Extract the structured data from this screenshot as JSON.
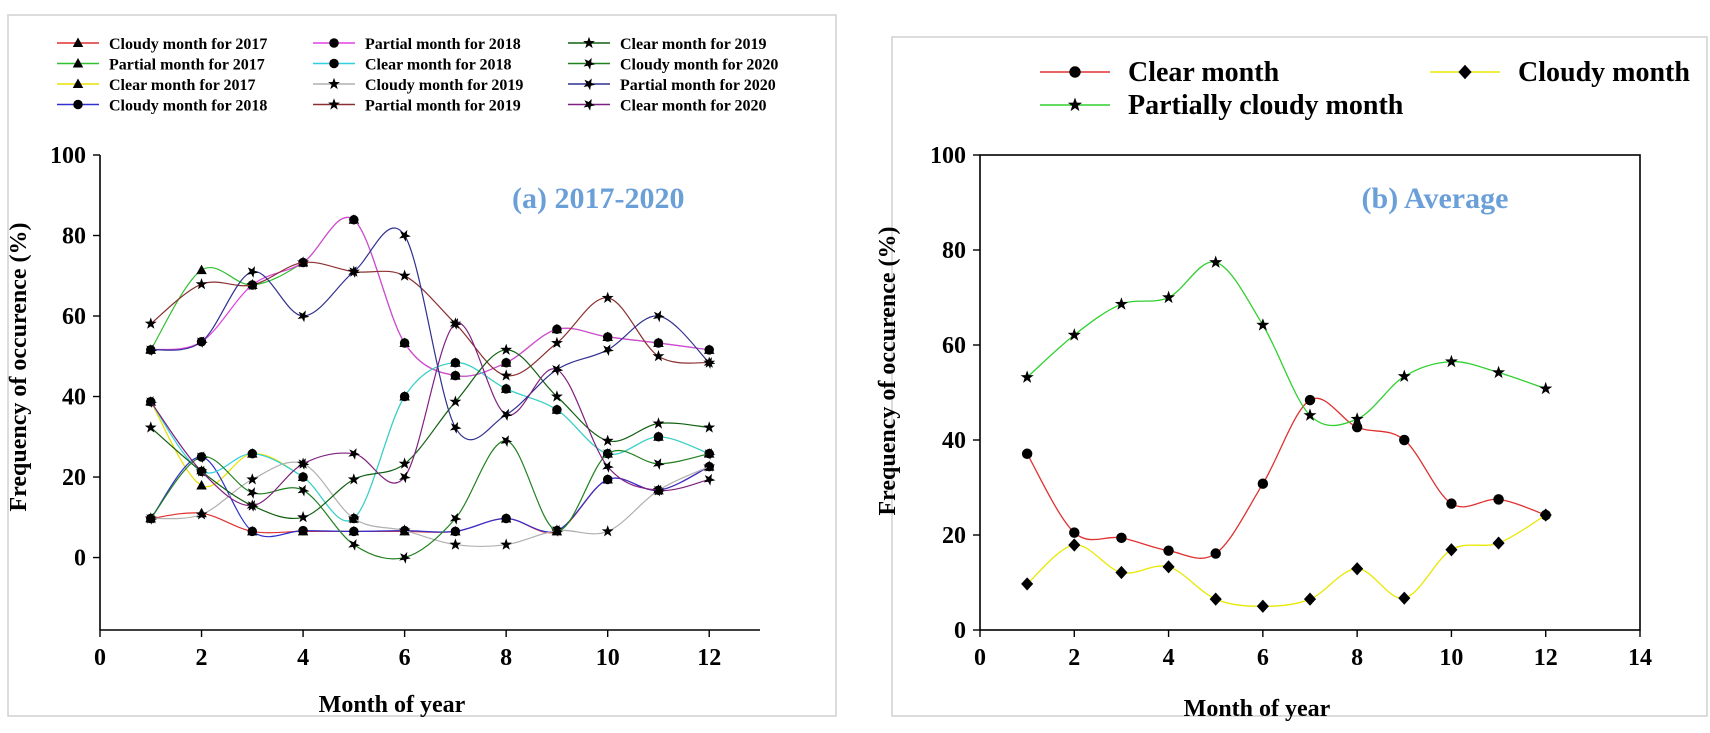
{
  "chart_data": [
    {
      "type": "line",
      "title": "(a) 2017-2020",
      "xlabel": "Month of year",
      "ylabel": "Frequency of occurence (%)",
      "xlim": [
        0,
        13
      ],
      "ylim": [
        -18,
        100
      ],
      "xticks": [
        0,
        2,
        4,
        6,
        8,
        10,
        12
      ],
      "yticks": [
        0,
        20,
        40,
        60,
        80,
        100
      ],
      "x": [
        1,
        2,
        3,
        4,
        5,
        6,
        7,
        8,
        9,
        10,
        11,
        12
      ],
      "series": [
        {
          "name": "Cloudy month for 2017",
          "color": "#e03030",
          "marker": "triangle",
          "values": [
            9.7,
            11,
            6.5,
            6.5,
            6.5,
            6.5,
            6.5,
            9.7,
            6.5,
            19.4,
            16.7,
            22.6
          ]
        },
        {
          "name": "Partial month for 2017",
          "color": "#30c030",
          "marker": "triangle",
          "values": [
            51.6,
            71.4,
            67.7,
            73.3,
            83.9,
            53.3,
            45.2,
            48.4,
            56.7,
            54.8,
            53.3,
            51.6
          ]
        },
        {
          "name": "Clear month for 2017",
          "color": "#e8e000",
          "marker": "triangle",
          "values": [
            38.7,
            17.9,
            25.8,
            20,
            9.7,
            40,
            48.4,
            41.9,
            36.7,
            25.8,
            30,
            25.8
          ]
        },
        {
          "name": "Cloudy month for 2018",
          "color": "#3030d0",
          "marker": "circle",
          "values": [
            9.7,
            25,
            6.5,
            6.7,
            6.5,
            6.7,
            6.5,
            9.7,
            6.7,
            19.4,
            16.7,
            22.6
          ]
        },
        {
          "name": "Partial month for 2018",
          "color": "#e040e0",
          "marker": "circle",
          "values": [
            51.6,
            53.6,
            67.7,
            73.3,
            83.9,
            53.3,
            45.2,
            48.4,
            56.7,
            54.8,
            53.3,
            51.6
          ]
        },
        {
          "name": "Clear month for 2018",
          "color": "#30d0e0",
          "marker": "circle",
          "values": [
            38.7,
            21.4,
            25.8,
            20,
            9.7,
            40,
            48.4,
            41.9,
            36.7,
            25.8,
            30,
            25.8
          ]
        },
        {
          "name": "Cloudy month for 2019",
          "color": "#b0b0b0",
          "marker": "star",
          "values": [
            9.7,
            10.7,
            19.4,
            23.3,
            9.7,
            6.7,
            3.2,
            3.2,
            6.7,
            6.5,
            16.7,
            22.6
          ]
        },
        {
          "name": "Partial month for 2019",
          "color": "#8b3030",
          "marker": "star",
          "values": [
            58.1,
            67.9,
            67.7,
            73.3,
            71,
            70,
            58.1,
            45.2,
            53.3,
            64.5,
            50,
            48.4
          ]
        },
        {
          "name": "Clear month for 2019",
          "color": "#106010",
          "marker": "star",
          "values": [
            32.3,
            21.4,
            12.9,
            10,
            19.4,
            23.3,
            38.7,
            51.6,
            40,
            29,
            33.3,
            32.3
          ]
        },
        {
          "name": "Cloudy month for 2020",
          "color": "#208020",
          "marker": "rotated-star",
          "values": [
            9.7,
            25,
            16.1,
            16.7,
            3.2,
            0,
            9.7,
            29,
            6.7,
            25.8,
            23.3,
            25.8
          ]
        },
        {
          "name": "Partial month for 2020",
          "color": "#303090",
          "marker": "rotated-star",
          "values": [
            51.6,
            53.6,
            71,
            60,
            71,
            80,
            32.3,
            35.5,
            46.7,
            51.6,
            60,
            48.4
          ]
        },
        {
          "name": "Clear month for 2020",
          "color": "#802080",
          "marker": "rotated-star",
          "values": [
            38.7,
            21.4,
            12.9,
            23.3,
            25.8,
            20,
            58.1,
            35.5,
            46.7,
            22.6,
            16.7,
            19.4
          ]
        }
      ]
    },
    {
      "type": "line",
      "title": "(b) Average",
      "xlabel": "Month of year",
      "ylabel": "Frequency of occurence (%)",
      "xlim": [
        0,
        14
      ],
      "ylim": [
        0,
        100
      ],
      "xticks": [
        0,
        2,
        4,
        6,
        8,
        10,
        12,
        14
      ],
      "yticks": [
        0,
        20,
        40,
        60,
        80,
        100
      ],
      "x": [
        1,
        2,
        3,
        4,
        5,
        6,
        7,
        8,
        9,
        10,
        11,
        12
      ],
      "series": [
        {
          "name": "Clear month",
          "color": "#e03030",
          "marker": "circle",
          "values": [
            37.1,
            20.5,
            19.4,
            16.7,
            16.1,
            30.8,
            48.4,
            42.7,
            40,
            26.6,
            27.5,
            24.2
          ]
        },
        {
          "name": "Partially cloudy month",
          "color": "#30d030",
          "marker": "star",
          "values": [
            53.2,
            62.1,
            68.6,
            70,
            77.4,
            64.2,
            45.2,
            44.4,
            53.4,
            56.5,
            54.2,
            50.8
          ]
        },
        {
          "name": "Cloudy month",
          "color": "#e8e800",
          "marker": "diamond",
          "values": [
            9.7,
            17.9,
            12.1,
            13.3,
            6.5,
            5,
            6.5,
            12.9,
            6.7,
            16.9,
            18.3,
            24.2
          ]
        }
      ]
    }
  ]
}
